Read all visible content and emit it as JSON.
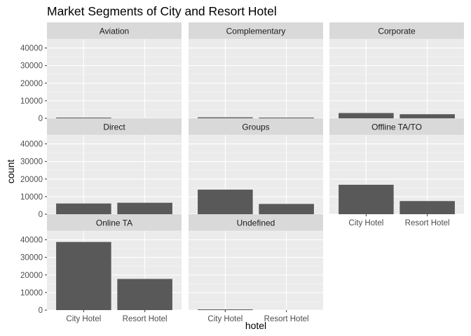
{
  "chart_data": {
    "type": "bar",
    "title": "Market Segments of City and Resort Hotel",
    "xlabel": "hotel",
    "ylabel": "count",
    "categories": [
      "City Hotel",
      "Resort Hotel"
    ],
    "ylim": [
      0,
      45000
    ],
    "yticks": [
      0,
      10000,
      20000,
      30000,
      40000
    ],
    "ytick_labels": [
      "0",
      "10000",
      "20000",
      "30000",
      "40000"
    ],
    "grid": true,
    "facets": [
      {
        "name": "Aviation",
        "values": [
          230,
          0
        ]
      },
      {
        "name": "Complementary",
        "values": [
          540,
          200
        ]
      },
      {
        "name": "Corporate",
        "values": [
          2990,
          2310
        ]
      },
      {
        "name": "Direct",
        "values": [
          6090,
          6510
        ]
      },
      {
        "name": "Groups",
        "values": [
          13980,
          5840
        ]
      },
      {
        "name": "Offline TA/TO",
        "values": [
          16750,
          7470
        ]
      },
      {
        "name": "Online TA",
        "values": [
          38750,
          17730
        ]
      },
      {
        "name": "Undefined",
        "values": [
          2,
          0
        ]
      }
    ],
    "colors": {
      "bar": "#595959",
      "panel_bg": "#ebebeb",
      "strip_bg": "#d9d9d9",
      "grid_major": "#ffffff",
      "grid_minor": "#f5f5f5",
      "tick": "#333333"
    }
  }
}
